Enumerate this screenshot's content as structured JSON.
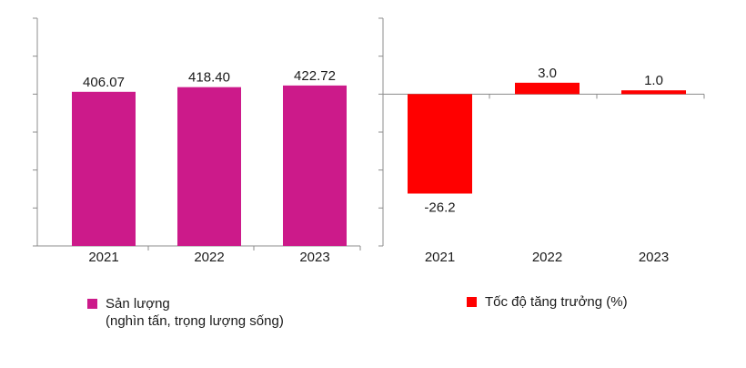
{
  "colors": {
    "production_bar": "#cc1a8a",
    "growth_bar": "#ff0000",
    "axis": "#8c8c8c"
  },
  "legend": {
    "production": {
      "line1": "Sản lượng",
      "line2": "(nghìn tấn, trọng lượng sống)"
    },
    "growth": {
      "line1": "Tốc độ tăng trưởng (%)"
    }
  },
  "chart_data": [
    {
      "type": "bar",
      "categories": [
        "2021",
        "2022",
        "2023"
      ],
      "series": [
        {
          "name": "Sản lượng (nghìn tấn, trọng lượng sống)",
          "values": [
            406.07,
            418.4,
            422.72
          ]
        }
      ],
      "value_labels": [
        "406.07",
        "418.40",
        "422.72"
      ],
      "ylim": [
        0,
        600
      ],
      "y_ticks_shown": false,
      "grid": false,
      "legend": "bottom-left"
    },
    {
      "type": "bar",
      "categories": [
        "2021",
        "2022",
        "2023"
      ],
      "series": [
        {
          "name": "Tốc độ tăng trưởng (%)",
          "values": [
            -26.2,
            3.0,
            1.0
          ]
        }
      ],
      "value_labels": [
        "-26.2",
        "3.0",
        "1.0"
      ],
      "ylim": [
        -40,
        20
      ],
      "y_ticks_shown": false,
      "grid": false,
      "legend": "bottom-left"
    }
  ]
}
